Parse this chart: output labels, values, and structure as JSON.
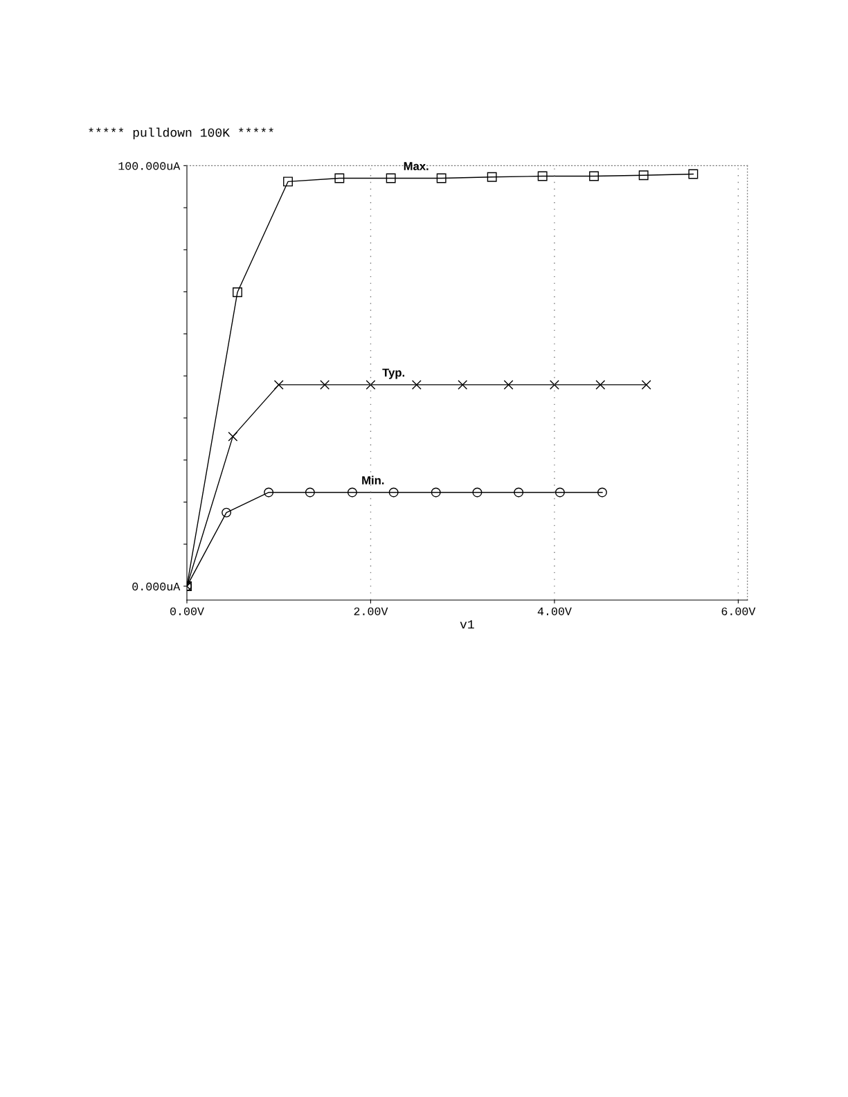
{
  "chart_data": {
    "type": "line",
    "title": "***** pulldown 100K *****",
    "xlabel": "v1",
    "xlim": [
      0,
      6.1
    ],
    "ylim": [
      -3.3,
      100
    ],
    "xticks": [
      {
        "value": 0,
        "label": "0.00V"
      },
      {
        "value": 2,
        "label": "2.00V"
      },
      {
        "value": 4,
        "label": "4.00V"
      },
      {
        "value": 6,
        "label": "6.00V"
      }
    ],
    "yticks": [
      {
        "value": 0,
        "label": "0.000uA"
      },
      {
        "value": 10,
        "label": null
      },
      {
        "value": 20,
        "label": null
      },
      {
        "value": 30,
        "label": null
      },
      {
        "value": 40,
        "label": null
      },
      {
        "value": 50,
        "label": null
      },
      {
        "value": 60,
        "label": null
      },
      {
        "value": 70,
        "label": null
      },
      {
        "value": 80,
        "label": null
      },
      {
        "value": 90,
        "label": null
      },
      {
        "value": 100,
        "label": "100.000uA"
      }
    ],
    "grid": "x",
    "line_style": "solid",
    "series": [
      {
        "name": "Max.",
        "color": "#000000",
        "marker": "square",
        "x": [
          0,
          0.55,
          1.1,
          1.66,
          2.22,
          2.77,
          3.32,
          3.87,
          4.43,
          4.97,
          5.51
        ],
        "values": [
          0,
          69.9,
          96.2,
          97.0,
          97.0,
          97.0,
          97.3,
          97.5,
          97.5,
          97.7,
          98.0
        ]
      },
      {
        "name": "Typ.",
        "color": "#000000",
        "marker": "cross",
        "x": [
          0,
          0.5,
          1.0,
          1.5,
          2.0,
          2.5,
          3.0,
          3.5,
          4.0,
          4.5,
          5.0
        ],
        "values": [
          0,
          35.6,
          47.9,
          47.9,
          47.9,
          47.9,
          47.9,
          47.9,
          47.9,
          47.9,
          47.9
        ]
      },
      {
        "name": "Min.",
        "color": "#000000",
        "marker": "circle",
        "x": [
          0,
          0.43,
          0.89,
          1.34,
          1.8,
          2.25,
          2.71,
          3.16,
          3.61,
          4.06,
          4.52
        ],
        "values": [
          0,
          17.5,
          22.3,
          22.3,
          22.3,
          22.3,
          22.3,
          22.3,
          22.3,
          22.3,
          22.3
        ]
      }
    ]
  }
}
